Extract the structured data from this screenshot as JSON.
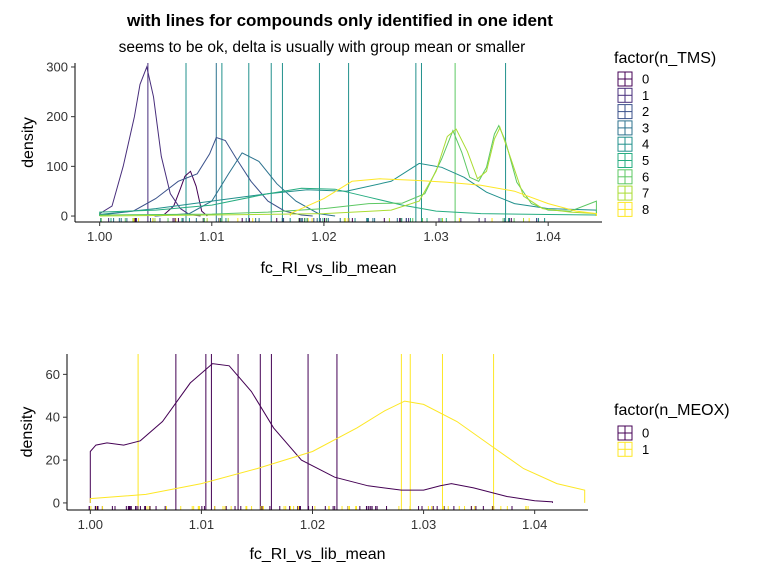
{
  "title": "with lines for compounds only identified in one ident",
  "chart_data": [
    {
      "type": "density",
      "subtitle": "seems to be ok, delta is usually with group mean or smaller",
      "xlabel": "fc_RI_vs_lib_mean",
      "ylabel": "density",
      "xlim": [
        0.9978,
        1.0448
      ],
      "ylim": [
        -12,
        308
      ],
      "xticks": [
        1.0,
        1.01,
        1.02,
        1.03,
        1.04
      ],
      "xtick_labels": [
        "1.00",
        "1.01",
        "1.02",
        "1.03",
        "1.04"
      ],
      "yticks": [
        0,
        100,
        200,
        300
      ],
      "ytick_labels": [
        "0",
        "100",
        "200",
        "300"
      ],
      "legend": {
        "title": "factor(n_TMS)",
        "position": "right"
      },
      "series": [
        {
          "name": "0",
          "color": "#440154",
          "points": [
            [
              1.0049,
              0
            ],
            [
              1.0057,
              2
            ],
            [
              1.0066,
              20
            ],
            [
              1.0072,
              55
            ],
            [
              1.0076,
              80
            ],
            [
              1.0081,
              90
            ],
            [
              1.0086,
              60
            ],
            [
              1.0091,
              10
            ],
            [
              1.0096,
              0
            ]
          ]
        },
        {
          "name": "1",
          "color": "#472D7B",
          "points": [
            [
              1.0,
              5
            ],
            [
              1.0011,
              20
            ],
            [
              1.0021,
              100
            ],
            [
              1.0031,
              200
            ],
            [
              1.0036,
              265
            ],
            [
              1.0042,
              300
            ],
            [
              1.0048,
              240
            ],
            [
              1.0055,
              120
            ],
            [
              1.0063,
              45
            ],
            [
              1.0072,
              15
            ],
            [
              1.008,
              3
            ],
            [
              1.009,
              0
            ]
          ]
        },
        {
          "name": "2",
          "color": "#3B528B",
          "points": [
            [
              1.0,
              2
            ],
            [
              1.003,
              10
            ],
            [
              1.005,
              35
            ],
            [
              1.007,
              70
            ],
            [
              1.0087,
              85
            ],
            [
              1.0098,
              125
            ],
            [
              1.0104,
              158
            ],
            [
              1.0112,
              152
            ],
            [
              1.0122,
              115
            ],
            [
              1.0135,
              70
            ],
            [
              1.015,
              30
            ],
            [
              1.0165,
              10
            ],
            [
              1.018,
              2
            ],
            [
              1.019,
              0
            ]
          ]
        },
        {
          "name": "3",
          "color": "#2C728E",
          "points": [
            [
              1.005,
              0
            ],
            [
              1.008,
              5
            ],
            [
              1.01,
              30
            ],
            [
              1.0115,
              85
            ],
            [
              1.0127,
              127
            ],
            [
              1.0142,
              110
            ],
            [
              1.0158,
              65
            ],
            [
              1.0175,
              30
            ],
            [
              1.0195,
              5
            ],
            [
              1.021,
              0
            ]
          ]
        },
        {
          "name": "4",
          "color": "#21908C",
          "points": [
            [
              1.0,
              3
            ],
            [
              1.005,
              15
            ],
            [
              1.01,
              30
            ],
            [
              1.015,
              45
            ],
            [
              1.0185,
              53
            ],
            [
              1.022,
              50
            ],
            [
              1.026,
              70
            ],
            [
              1.0285,
              106
            ],
            [
              1.0305,
              98
            ],
            [
              1.0325,
              78
            ],
            [
              1.0345,
              48
            ],
            [
              1.037,
              25
            ],
            [
              1.04,
              15
            ],
            [
              1.0443,
              12
            ]
          ]
        },
        {
          "name": "5",
          "color": "#27AD81",
          "points": [
            [
              1.0,
              8
            ],
            [
              1.005,
              12
            ],
            [
              1.01,
              22
            ],
            [
              1.015,
              45
            ],
            [
              1.018,
              56
            ],
            [
              1.021,
              54
            ],
            [
              1.024,
              38
            ],
            [
              1.027,
              22
            ],
            [
              1.03,
              10
            ],
            [
              1.034,
              5
            ],
            [
              1.04,
              3
            ],
            [
              1.0443,
              2
            ]
          ]
        },
        {
          "name": "6",
          "color": "#5DC863",
          "points": [
            [
              1.0,
              2
            ],
            [
              1.01,
              4
            ],
            [
              1.015,
              8
            ],
            [
              1.02,
              15
            ],
            [
              1.024,
              25
            ],
            [
              1.027,
              26
            ],
            [
              1.029,
              45
            ],
            [
              1.0305,
              115
            ],
            [
              1.0315,
              172
            ],
            [
              1.0323,
              128
            ],
            [
              1.033,
              78
            ],
            [
              1.0338,
              70
            ],
            [
              1.0345,
              98
            ],
            [
              1.0352,
              165
            ],
            [
              1.0356,
              182
            ],
            [
              1.0362,
              150
            ],
            [
              1.0372,
              68
            ],
            [
              1.0385,
              25
            ],
            [
              1.04,
              12
            ],
            [
              1.042,
              10
            ],
            [
              1.0443,
              30
            ]
          ]
        },
        {
          "name": "7",
          "color": "#AADC32",
          "points": [
            [
              1.0,
              0
            ],
            [
              1.01,
              2
            ],
            [
              1.02,
              5
            ],
            [
              1.026,
              12
            ],
            [
              1.0285,
              30
            ],
            [
              1.03,
              90
            ],
            [
              1.031,
              160
            ],
            [
              1.0318,
              175
            ],
            [
              1.0328,
              130
            ],
            [
              1.0337,
              75
            ],
            [
              1.0345,
              90
            ],
            [
              1.0352,
              155
            ],
            [
              1.0357,
              178
            ],
            [
              1.0366,
              120
            ],
            [
              1.0378,
              40
            ],
            [
              1.0395,
              15
            ],
            [
              1.042,
              8
            ],
            [
              1.0443,
              5
            ]
          ]
        },
        {
          "name": "8",
          "color": "#FDE725",
          "points": [
            [
              1.017,
              5
            ],
            [
              1.02,
              35
            ],
            [
              1.0225,
              70
            ],
            [
              1.025,
              75
            ],
            [
              1.028,
              72
            ],
            [
              1.031,
              68
            ],
            [
              1.034,
              62
            ],
            [
              1.037,
              50
            ],
            [
              1.04,
              25
            ],
            [
              1.0425,
              10
            ],
            [
              1.0443,
              5
            ]
          ]
        }
      ],
      "vlines": [
        {
          "x": 1.0043,
          "series": "1"
        },
        {
          "x": 1.0077,
          "series": "4"
        },
        {
          "x": 1.0104,
          "series": "3"
        },
        {
          "x": 1.0109,
          "series": "4"
        },
        {
          "x": 1.0133,
          "series": "4"
        },
        {
          "x": 1.0153,
          "series": "4"
        },
        {
          "x": 1.0163,
          "series": "4"
        },
        {
          "x": 1.0196,
          "series": "4"
        },
        {
          "x": 1.0222,
          "series": "4"
        },
        {
          "x": 1.0282,
          "series": "4"
        },
        {
          "x": 1.0287,
          "series": "4"
        },
        {
          "x": 1.0317,
          "series": "6"
        },
        {
          "x": 1.0362,
          "series": "4"
        }
      ]
    },
    {
      "type": "density",
      "xlabel": "fc_RI_vs_lib_mean",
      "ylabel": "density",
      "xlim": [
        0.9979,
        1.0448
      ],
      "ylim": [
        -3.3,
        69.5
      ],
      "xticks": [
        1.0,
        1.01,
        1.02,
        1.03,
        1.04
      ],
      "xtick_labels": [
        "1.00",
        "1.01",
        "1.02",
        "1.03",
        "1.04"
      ],
      "yticks": [
        0,
        20,
        40,
        60
      ],
      "ytick_labels": [
        "0",
        "20",
        "40",
        "60"
      ],
      "legend": {
        "title": "factor(n_MEOX)",
        "position": "right"
      },
      "series": [
        {
          "name": "0",
          "color": "#440154",
          "points": [
            [
              1.0,
              24
            ],
            [
              1.0005,
              27
            ],
            [
              1.0015,
              28
            ],
            [
              1.003,
              27
            ],
            [
              1.0045,
              29
            ],
            [
              1.0065,
              38
            ],
            [
              1.009,
              56
            ],
            [
              1.011,
              65
            ],
            [
              1.0125,
              64
            ],
            [
              1.0145,
              52
            ],
            [
              1.0165,
              35
            ],
            [
              1.019,
              20
            ],
            [
              1.022,
              12
            ],
            [
              1.025,
              8
            ],
            [
              1.028,
              6
            ],
            [
              1.03,
              6
            ],
            [
              1.0315,
              8
            ],
            [
              1.0325,
              9
            ],
            [
              1.0345,
              7
            ],
            [
              1.0375,
              3
            ],
            [
              1.04,
              1
            ],
            [
              1.0416,
              0.5
            ]
          ]
        },
        {
          "name": "1",
          "color": "#FDE725",
          "points": [
            [
              1.0,
              2
            ],
            [
              1.005,
              4
            ],
            [
              1.01,
              9
            ],
            [
              1.015,
              16
            ],
            [
              1.02,
              24
            ],
            [
              1.024,
              35
            ],
            [
              1.0265,
              43
            ],
            [
              1.0283,
              47.5
            ],
            [
              1.03,
              46
            ],
            [
              1.033,
              38
            ],
            [
              1.036,
              27
            ],
            [
              1.039,
              16
            ],
            [
              1.042,
              9
            ],
            [
              1.0445,
              6
            ]
          ]
        }
      ],
      "vlines": [
        {
          "x": 1.0043,
          "series": "1"
        },
        {
          "x": 1.0077,
          "series": "0"
        },
        {
          "x": 1.0104,
          "series": "0"
        },
        {
          "x": 1.0109,
          "series": "0"
        },
        {
          "x": 1.0133,
          "series": "0"
        },
        {
          "x": 1.0153,
          "series": "0"
        },
        {
          "x": 1.0163,
          "series": "0"
        },
        {
          "x": 1.0196,
          "series": "0"
        },
        {
          "x": 1.0222,
          "series": "0"
        },
        {
          "x": 1.028,
          "series": "1"
        },
        {
          "x": 1.0288,
          "series": "1"
        },
        {
          "x": 1.0317,
          "series": "1"
        },
        {
          "x": 1.0363,
          "series": "1"
        }
      ]
    }
  ]
}
